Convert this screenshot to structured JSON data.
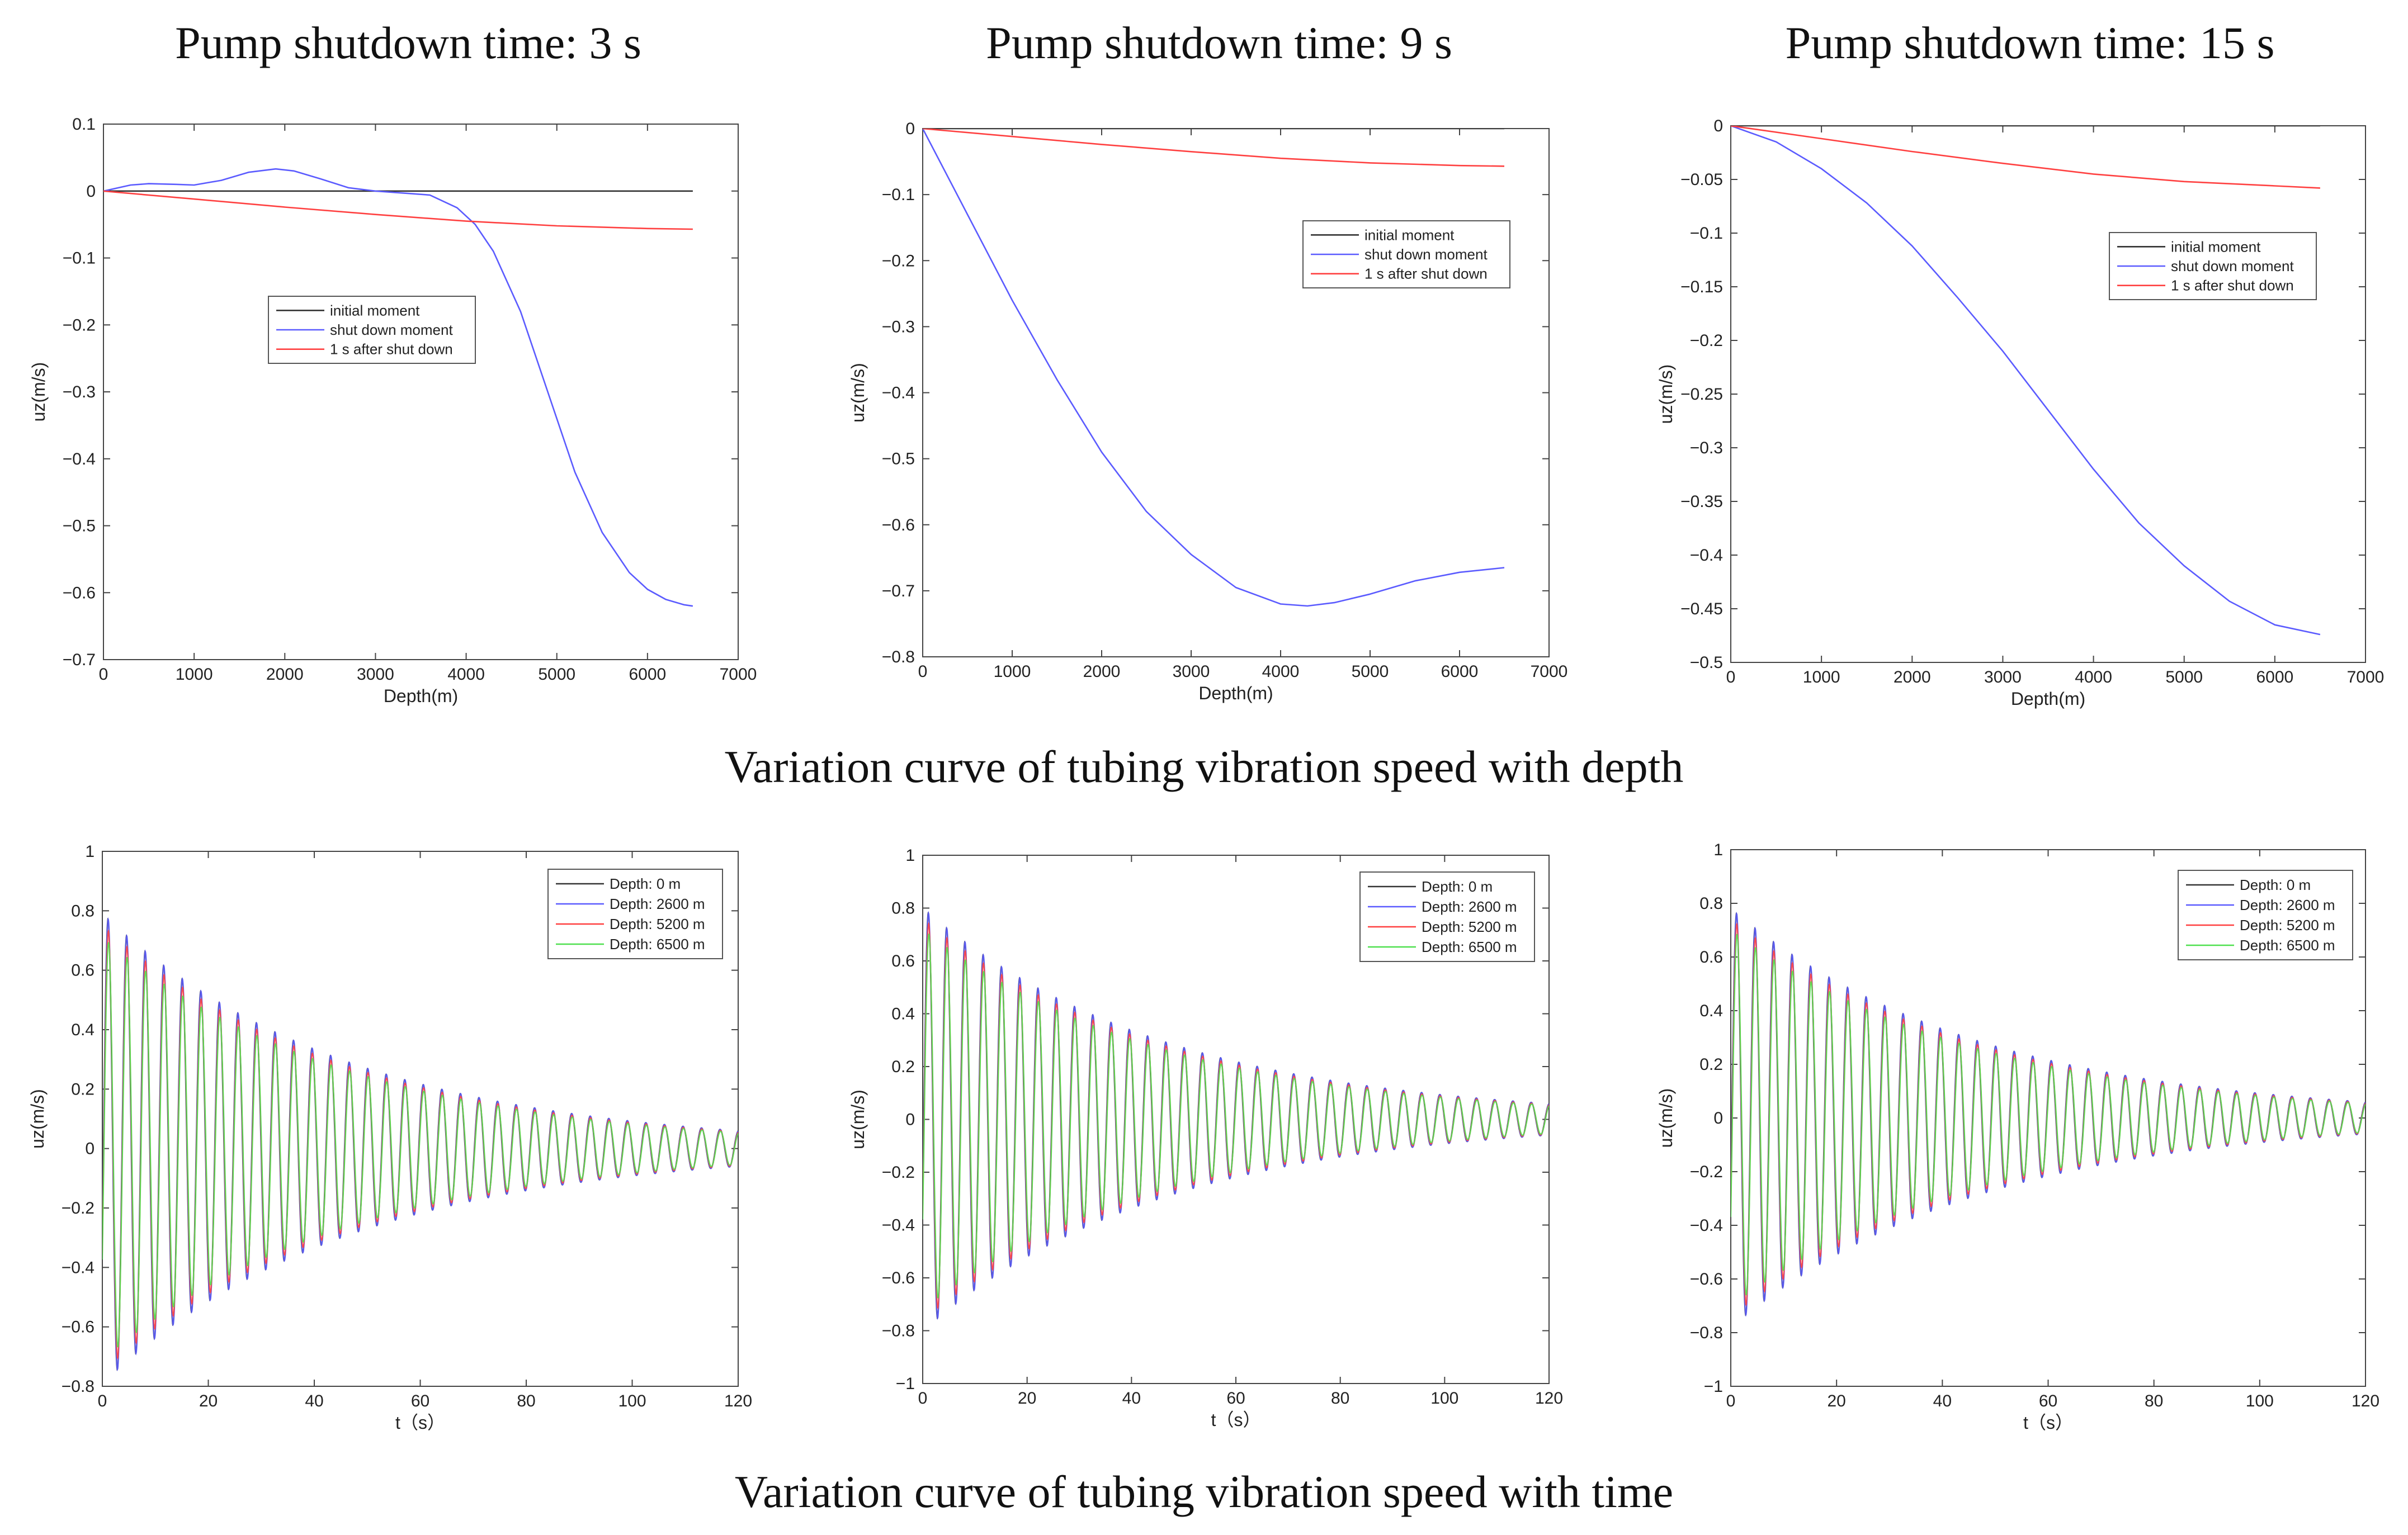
{
  "top_row_caption": "Variation curve of tubing vibration speed with depth",
  "bottom_row_caption": "Variation curve of tubing vibration speed with time",
  "colors": {
    "black": "#333333",
    "blue": "#5b5bff",
    "red": "#ff4040",
    "green": "#4fe04f"
  },
  "chart_data": [
    {
      "type": "line",
      "title": "Pump shutdown time: 3 s",
      "xlabel": "Depth(m)",
      "ylabel": "uz(m/s)",
      "xlim": [
        0,
        7000
      ],
      "ylim": [
        -0.7,
        0.1
      ],
      "xticks": [
        0,
        1000,
        2000,
        3000,
        4000,
        5000,
        6000,
        7000
      ],
      "yticks": [
        0.1,
        0,
        -0.1,
        -0.2,
        -0.3,
        -0.4,
        -0.5,
        -0.6,
        -0.7
      ],
      "yticklabels": [
        "0.1",
        "0",
        "−0.1",
        "−0.2",
        "−0.3",
        "−0.4",
        "−0.5",
        "−0.6",
        "−0.7"
      ],
      "legend_position": "center-left",
      "series": [
        {
          "name": "initial moment",
          "color": "#333333",
          "x": [
            0,
            6500
          ],
          "values": [
            0,
            0
          ]
        },
        {
          "name": "shut down moment",
          "color": "#5b5bff",
          "x": [
            0,
            300,
            500,
            800,
            1000,
            1300,
            1600,
            1900,
            2100,
            2400,
            2700,
            3000,
            3300,
            3600,
            3900,
            4100,
            4300,
            4600,
            4900,
            5200,
            5500,
            5800,
            6000,
            6200,
            6400,
            6500
          ],
          "values": [
            0,
            0.009,
            0.011,
            0.01,
            0.009,
            0.016,
            0.028,
            0.033,
            0.03,
            0.018,
            0.005,
            0,
            -0.003,
            -0.006,
            -0.025,
            -0.05,
            -0.09,
            -0.18,
            -0.3,
            -0.42,
            -0.51,
            -0.57,
            -0.595,
            -0.61,
            -0.618,
            -0.62
          ]
        },
        {
          "name": "1 s after shut down",
          "color": "#ff4040",
          "x": [
            0,
            1000,
            2000,
            3000,
            4000,
            5000,
            6000,
            6500
          ],
          "values": [
            0,
            -0.012,
            -0.024,
            -0.035,
            -0.045,
            -0.052,
            -0.056,
            -0.057
          ]
        }
      ]
    },
    {
      "type": "line",
      "title": "Pump shutdown time: 9 s",
      "xlabel": "Depth(m)",
      "ylabel": "uz(m/s)",
      "xlim": [
        0,
        7000
      ],
      "ylim": [
        -0.8,
        0
      ],
      "xticks": [
        0,
        1000,
        2000,
        3000,
        4000,
        5000,
        6000,
        7000
      ],
      "yticks": [
        0,
        -0.1,
        -0.2,
        -0.3,
        -0.4,
        -0.5,
        -0.6,
        -0.7,
        -0.8
      ],
      "yticklabels": [
        "0",
        "−0.1",
        "−0.2",
        "−0.3",
        "−0.4",
        "−0.5",
        "−0.6",
        "−0.7",
        "−0.8"
      ],
      "legend_position": "upper-right",
      "series": [
        {
          "name": "initial moment",
          "color": "#333333",
          "x": [
            0,
            6500
          ],
          "values": [
            0,
            0
          ]
        },
        {
          "name": "shut down moment",
          "color": "#5b5bff",
          "x": [
            0,
            500,
            1000,
            1500,
            2000,
            2500,
            3000,
            3500,
            4000,
            4300,
            4600,
            5000,
            5500,
            6000,
            6500
          ],
          "values": [
            0,
            -0.13,
            -0.26,
            -0.38,
            -0.49,
            -0.58,
            -0.645,
            -0.695,
            -0.72,
            -0.723,
            -0.718,
            -0.705,
            -0.685,
            -0.672,
            -0.665
          ]
        },
        {
          "name": "1 s after shut down",
          "color": "#ff4040",
          "x": [
            0,
            1000,
            2000,
            3000,
            4000,
            5000,
            6000,
            6500
          ],
          "values": [
            0,
            -0.012,
            -0.024,
            -0.035,
            -0.045,
            -0.052,
            -0.056,
            -0.057
          ]
        }
      ]
    },
    {
      "type": "line",
      "title": "Pump shutdown time: 15 s",
      "xlabel": "Depth(m)",
      "ylabel": "uz(m/s)",
      "xlim": [
        0,
        7000
      ],
      "ylim": [
        -0.5,
        0
      ],
      "xticks": [
        0,
        1000,
        2000,
        3000,
        4000,
        5000,
        6000,
        7000
      ],
      "yticks": [
        0,
        -0.05,
        -0.1,
        -0.15,
        -0.2,
        -0.25,
        -0.3,
        -0.35,
        -0.4,
        -0.45,
        -0.5
      ],
      "yticklabels": [
        "0",
        "−0.05",
        "−0.1",
        "−0.15",
        "−0.2",
        "−0.25",
        "−0.3",
        "−0.35",
        "−0.4",
        "−0.45",
        "−0.5"
      ],
      "legend_position": "upper-right",
      "series": [
        {
          "name": "initial moment",
          "color": "#333333",
          "x": [
            0,
            6500
          ],
          "values": [
            0,
            0
          ]
        },
        {
          "name": "shut down moment",
          "color": "#5b5bff",
          "x": [
            0,
            500,
            1000,
            1500,
            2000,
            2500,
            3000,
            3500,
            4000,
            4500,
            5000,
            5500,
            6000,
            6500
          ],
          "values": [
            0,
            -0.015,
            -0.04,
            -0.072,
            -0.112,
            -0.16,
            -0.21,
            -0.265,
            -0.32,
            -0.37,
            -0.41,
            -0.443,
            -0.465,
            -0.474
          ]
        },
        {
          "name": "1 s after shut down",
          "color": "#ff4040",
          "x": [
            0,
            1000,
            2000,
            3000,
            4000,
            5000,
            6000,
            6500
          ],
          "values": [
            0,
            -0.012,
            -0.024,
            -0.035,
            -0.045,
            -0.052,
            -0.056,
            -0.058
          ]
        }
      ]
    },
    {
      "type": "line",
      "title": "",
      "xlabel": "t（s）",
      "ylabel": "uz(m/s)",
      "xlim": [
        0,
        120
      ],
      "ylim": [
        -0.8,
        1
      ],
      "xticks": [
        0,
        20,
        40,
        60,
        80,
        100,
        120
      ],
      "yticks": [
        1,
        0.8,
        0.6,
        0.4,
        0.2,
        0,
        -0.2,
        -0.4,
        -0.6,
        -0.8
      ],
      "yticklabels": [
        "1",
        "0.8",
        "0.6",
        "0.4",
        "0.2",
        "0",
        "−0.2",
        "−0.4",
        "−0.6",
        "−0.8"
      ],
      "legend_position": "upper-right",
      "oscillation": {
        "amplitude_start": 0.79,
        "amplitude_end": 0.06,
        "period_s": 3.5,
        "duration_s": 120
      },
      "series": [
        {
          "name": "Depth: 0 m",
          "color": "#333333",
          "amplitude_scale": 1.0
        },
        {
          "name": "Depth: 2600 m",
          "color": "#5b5bff",
          "amplitude_scale": 1.0
        },
        {
          "name": "Depth: 5200 m",
          "color": "#ff4040",
          "amplitude_scale": 0.95
        },
        {
          "name": "Depth: 6500 m",
          "color": "#4fe04f",
          "amplitude_scale": 0.9
        }
      ]
    },
    {
      "type": "line",
      "title": "",
      "xlabel": "t（s）",
      "ylabel": "uz(m/s)",
      "xlim": [
        0,
        120
      ],
      "ylim": [
        -1,
        1
      ],
      "xticks": [
        0,
        20,
        40,
        60,
        80,
        100,
        120
      ],
      "yticks": [
        1,
        0.8,
        0.6,
        0.4,
        0.2,
        0,
        -0.2,
        -0.4,
        -0.6,
        -0.8,
        -1
      ],
      "yticklabels": [
        "1",
        "0.8",
        "0.6",
        "0.4",
        "0.2",
        "0",
        "−0.2",
        "−0.4",
        "−0.6",
        "−0.8",
        "−1"
      ],
      "legend_position": "upper-right",
      "oscillation": {
        "amplitude_start": 0.8,
        "amplitude_end": 0.06,
        "period_s": 3.5,
        "duration_s": 120
      },
      "series": [
        {
          "name": "Depth: 0 m",
          "color": "#333333",
          "amplitude_scale": 1.0
        },
        {
          "name": "Depth: 2600 m",
          "color": "#5b5bff",
          "amplitude_scale": 1.0
        },
        {
          "name": "Depth: 5200 m",
          "color": "#ff4040",
          "amplitude_scale": 0.95
        },
        {
          "name": "Depth: 6500 m",
          "color": "#4fe04f",
          "amplitude_scale": 0.9
        }
      ]
    },
    {
      "type": "line",
      "title": "",
      "xlabel": "t（s）",
      "ylabel": "uz(m/s)",
      "xlim": [
        0,
        120
      ],
      "ylim": [
        -1,
        1
      ],
      "xticks": [
        0,
        20,
        40,
        60,
        80,
        100,
        120
      ],
      "yticks": [
        1,
        0.8,
        0.6,
        0.4,
        0.2,
        0,
        -0.2,
        -0.4,
        -0.6,
        -0.8,
        -1
      ],
      "yticklabels": [
        "1",
        "0.8",
        "0.6",
        "0.4",
        "0.2",
        "0",
        "−0.2",
        "−0.4",
        "−0.6",
        "−0.8",
        "−1"
      ],
      "legend_position": "upper-right",
      "oscillation": {
        "amplitude_start": 0.78,
        "amplitude_end": 0.06,
        "period_s": 3.5,
        "duration_s": 120
      },
      "series": [
        {
          "name": "Depth: 0 m",
          "color": "#333333",
          "amplitude_scale": 1.0
        },
        {
          "name": "Depth: 2600 m",
          "color": "#5b5bff",
          "amplitude_scale": 1.0
        },
        {
          "name": "Depth: 5200 m",
          "color": "#ff4040",
          "amplitude_scale": 0.95
        },
        {
          "name": "Depth: 6500 m",
          "color": "#4fe04f",
          "amplitude_scale": 0.9
        }
      ]
    }
  ]
}
